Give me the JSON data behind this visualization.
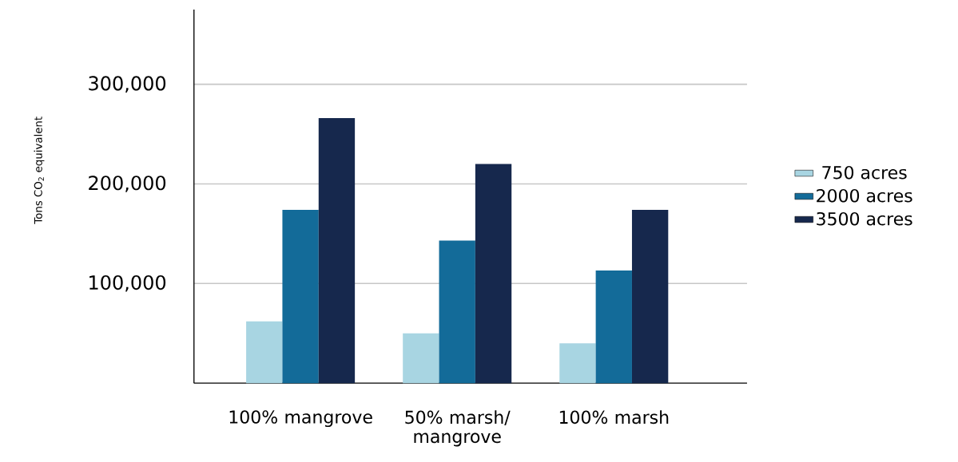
{
  "chart_data": {
    "type": "bar",
    "ylabel": "Tons CO$_{2}$ equivalent",
    "categories": [
      "100% mangrove",
      "50% marsh/ mangrove",
      "100% marsh"
    ],
    "series": [
      {
        "name": "750 acres",
        "color": "#a8d5e2",
        "values": [
          62000,
          50000,
          40000
        ]
      },
      {
        "name": "2000 acres",
        "color": "#136b99",
        "values": [
          174000,
          143000,
          113000
        ]
      },
      {
        "name": "3500 acres",
        "color": "#16284d",
        "values": [
          266000,
          220000,
          174000
        ]
      }
    ],
    "ylim": [
      0,
      375000
    ],
    "yticks": [
      {
        "value": 100000,
        "label": "100,000"
      },
      {
        "value": 200000,
        "label": "200,000"
      },
      {
        "value": 300000,
        "label": "300,000"
      }
    ],
    "grid": "y",
    "legend": "right"
  }
}
